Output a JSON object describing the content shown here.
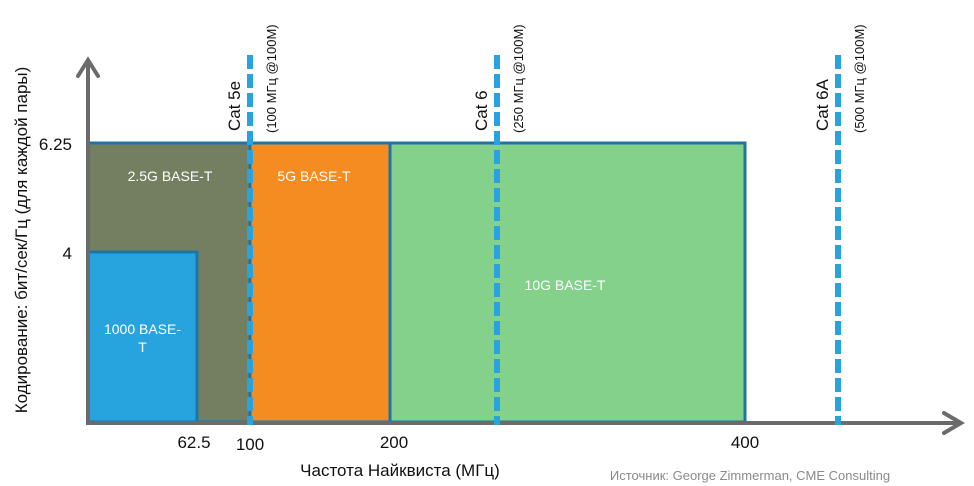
{
  "chart_data": {
    "type": "area",
    "xlabel": "Частота Найквиста (МГц)",
    "ylabel": "Кодирование: бит/сек/Гц (для каждой пары)",
    "x_ticks": [
      "62.5",
      "100",
      "200",
      "400"
    ],
    "y_ticks": [
      "4",
      "6.25"
    ],
    "regions": [
      {
        "name": "2.5G BASE-T",
        "x": [
          0,
          100
        ],
        "y": [
          0,
          6.25
        ],
        "color": "#747f62"
      },
      {
        "name": "5G BASE-T",
        "x": [
          100,
          200
        ],
        "y": [
          0,
          6.25
        ],
        "color": "#f48c22"
      },
      {
        "name": "10G BASE-T",
        "x": [
          200,
          400
        ],
        "y": [
          0,
          6.25
        ],
        "color": "#84d18b"
      },
      {
        "name": "1000 BASE-T",
        "x": [
          0,
          62.5
        ],
        "y": [
          0,
          4
        ],
        "color": "#27a3dd"
      }
    ],
    "region_border_color": "#1f74a6",
    "cable_lines": [
      {
        "label": "Cat 5e",
        "sub": "(100 МГц @100M)",
        "x": 100
      },
      {
        "label": "Cat 6",
        "sub": "(250 МГц @100M)",
        "x": 250
      },
      {
        "label": "Cat 6A",
        "sub": "(500 МГц @100M)",
        "x": 500
      }
    ],
    "cable_line_color": "#29a3df",
    "axis_color": "#6b6b6b",
    "grid": false,
    "source": "Источник: George Zimmerman,  CME Consulting"
  }
}
